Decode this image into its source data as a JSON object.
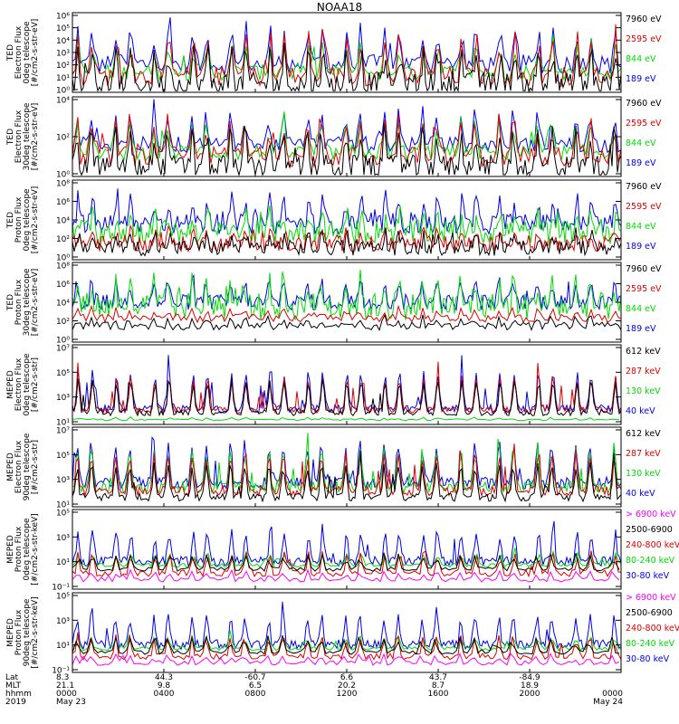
{
  "title": "NOAA18",
  "colors": {
    "black": "#000000",
    "red": "#e00000",
    "green": "#00dd00",
    "blue": "#0000ee",
    "magenta": "#ff00ff"
  },
  "chart_data": [
    {
      "type": "line",
      "ylabel": [
        "TED",
        "Electron Flux",
        "0deg telescope",
        "[#/cm2-s-str-eV]"
      ],
      "yticks": [
        "10⁶",
        "10⁵",
        "10⁴",
        "10³",
        "10²",
        "10¹",
        "10⁰"
      ],
      "legend": [
        {
          "label": "7960 eV",
          "color": "black"
        },
        {
          "label": "2595 eV",
          "color": "red"
        },
        {
          "label": "844 eV",
          "color": "green"
        },
        {
          "label": "189 eV",
          "color": "blue"
        }
      ],
      "style": "ted_e0"
    },
    {
      "type": "line",
      "ylabel": [
        "TED",
        "Electron Flux",
        "30deg telescope",
        "[#/cm2-s-str-eV]"
      ],
      "yticks": [
        "10⁴",
        "10²",
        "10⁰"
      ],
      "legend": [
        {
          "label": "7960 eV",
          "color": "black"
        },
        {
          "label": "2595 eV",
          "color": "red"
        },
        {
          "label": "844 eV",
          "color": "green"
        },
        {
          "label": "189 eV",
          "color": "blue"
        }
      ],
      "style": "ted_e30"
    },
    {
      "type": "line",
      "ylabel": [
        "TED",
        "Proton Flux",
        "0deg telescope",
        "[#/cm2-s-str-eV]"
      ],
      "yticks": [
        "10⁸",
        "10⁶",
        "10⁴",
        "10²",
        "10⁰"
      ],
      "legend": [
        {
          "label": "7960 eV",
          "color": "black"
        },
        {
          "label": "2595 eV",
          "color": "red"
        },
        {
          "label": "844 eV",
          "color": "green"
        },
        {
          "label": "189 eV",
          "color": "blue"
        }
      ],
      "style": "ted_p0"
    },
    {
      "type": "line",
      "ylabel": [
        "TED",
        "Proton Flux",
        "30deg telescope",
        "[#/cm2-s-str-eV]"
      ],
      "yticks": [
        "10⁸",
        "10⁶",
        "10⁴",
        "10²",
        "10⁰"
      ],
      "legend": [
        {
          "label": "7960 eV",
          "color": "black"
        },
        {
          "label": "2595 eV",
          "color": "red"
        },
        {
          "label": "844 eV",
          "color": "green"
        },
        {
          "label": "189 eV",
          "color": "blue"
        }
      ],
      "style": "ted_p30"
    },
    {
      "type": "line",
      "ylabel": [
        "MEPED",
        "Electron Flux",
        "0deg telescope",
        "[#/cm2-s-str]"
      ],
      "yticks": [
        "10⁷",
        "10⁵",
        "10³",
        "10¹"
      ],
      "legend": [
        {
          "label": "612 keV",
          "color": "black"
        },
        {
          "label": "287 keV",
          "color": "red"
        },
        {
          "label": "130 keV",
          "color": "green"
        },
        {
          "label": "40 keV",
          "color": "blue"
        }
      ],
      "style": "mep_e0"
    },
    {
      "type": "line",
      "ylabel": [
        "MEPED",
        "Electron Flux",
        "90deg telescope",
        "[#/cm2-s-str]"
      ],
      "yticks": [
        "10⁷",
        "10⁵",
        "10³",
        "10¹"
      ],
      "legend": [
        {
          "label": "612 keV",
          "color": "black"
        },
        {
          "label": "287 keV",
          "color": "red"
        },
        {
          "label": "130 keV",
          "color": "green"
        },
        {
          "label": "40 keV",
          "color": "blue"
        }
      ],
      "style": "mep_e90"
    },
    {
      "type": "line",
      "ylabel": [
        "MEPED",
        "Proton Flux",
        "0deg telescope",
        "[#/cm2-s-str-keV]"
      ],
      "yticks": [
        "10⁵",
        "10³",
        "10¹",
        "10⁻¹"
      ],
      "legend": [
        {
          "label": "> 6900 keV",
          "color": "magenta"
        },
        {
          "label": "2500-6900",
          "color": "black"
        },
        {
          "label": "240-800 keV",
          "color": "red"
        },
        {
          "label": "80-240 keV",
          "color": "green"
        },
        {
          "label": "30-80 keV",
          "color": "blue"
        }
      ],
      "style": "mep_p0"
    },
    {
      "type": "line",
      "ylabel": [
        "MEPED",
        "Proton Flux",
        "90deg telescope",
        "[#/cm2-s-str-keV]"
      ],
      "yticks": [
        "10⁵",
        "10³",
        "10¹",
        "10⁻¹"
      ],
      "legend": [
        {
          "label": "> 6900 keV",
          "color": "magenta"
        },
        {
          "label": "2500-6900",
          "color": "black"
        },
        {
          "label": "240-800 keV",
          "color": "red"
        },
        {
          "label": "80-240 keV",
          "color": "green"
        },
        {
          "label": "30-80 keV",
          "color": "blue"
        }
      ],
      "style": "mep_p90"
    }
  ],
  "xaxis": {
    "row_labels": [
      "Lat",
      "MLT",
      "hhmm",
      "2019"
    ],
    "ticks": [
      {
        "lat": "8.3",
        "mlt": "21.1",
        "hhmm": "0000",
        "date": "May 23"
      },
      {
        "lat": "44.3",
        "mlt": "9.8",
        "hhmm": "0400",
        "date": ""
      },
      {
        "lat": "-60.7",
        "mlt": "6.5",
        "hhmm": "0800",
        "date": ""
      },
      {
        "lat": "6.6",
        "mlt": "20.2",
        "hhmm": "1200",
        "date": ""
      },
      {
        "lat": "43.7",
        "mlt": "8.7",
        "hhmm": "1600",
        "date": ""
      },
      {
        "lat": "-84.9",
        "mlt": "18.9",
        "hhmm": "2000",
        "date": ""
      },
      {
        "lat": "",
        "mlt": "",
        "hhmm": "0000",
        "date": "May 24"
      }
    ]
  }
}
